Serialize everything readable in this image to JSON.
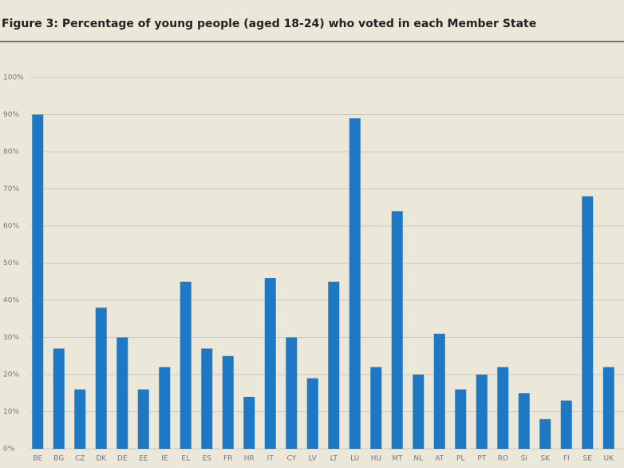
{
  "chart_data": {
    "type": "bar",
    "title": "Figure 3: Percentage of young people (aged 18-24) who voted in each Member State",
    "categories": [
      "BE",
      "BG",
      "CZ",
      "DK",
      "DE",
      "EE",
      "IE",
      "EL",
      "ES",
      "FR",
      "HR",
      "IT",
      "CY",
      "LV",
      "LT",
      "LU",
      "HU",
      "MT",
      "NL",
      "AT",
      "PL",
      "PT",
      "RO",
      "SI",
      "SK",
      "FI",
      "SE",
      "UK"
    ],
    "values": [
      90,
      27,
      16,
      38,
      30,
      16,
      22,
      45,
      27,
      25,
      14,
      46,
      30,
      19,
      45,
      89,
      22,
      64,
      20,
      31,
      16,
      20,
      22,
      15,
      8,
      13,
      68,
      22
    ],
    "color": "#1f78c4",
    "ylim": [
      0,
      100
    ],
    "yticks": [
      {
        "value": 0,
        "label": "0%"
      },
      {
        "value": 10,
        "label": "10%"
      },
      {
        "value": 20,
        "label": "20%"
      },
      {
        "value": 30,
        "label": "30%"
      },
      {
        "value": 40,
        "label": "40%"
      },
      {
        "value": 50,
        "label": "50%"
      },
      {
        "value": 60,
        "label": "60%"
      },
      {
        "value": 70,
        "label": "70%"
      },
      {
        "value": 80,
        "label": "80%"
      },
      {
        "value": 90,
        "label": "90%"
      },
      {
        "value": 100,
        "label": "100%"
      }
    ],
    "grid": true
  }
}
